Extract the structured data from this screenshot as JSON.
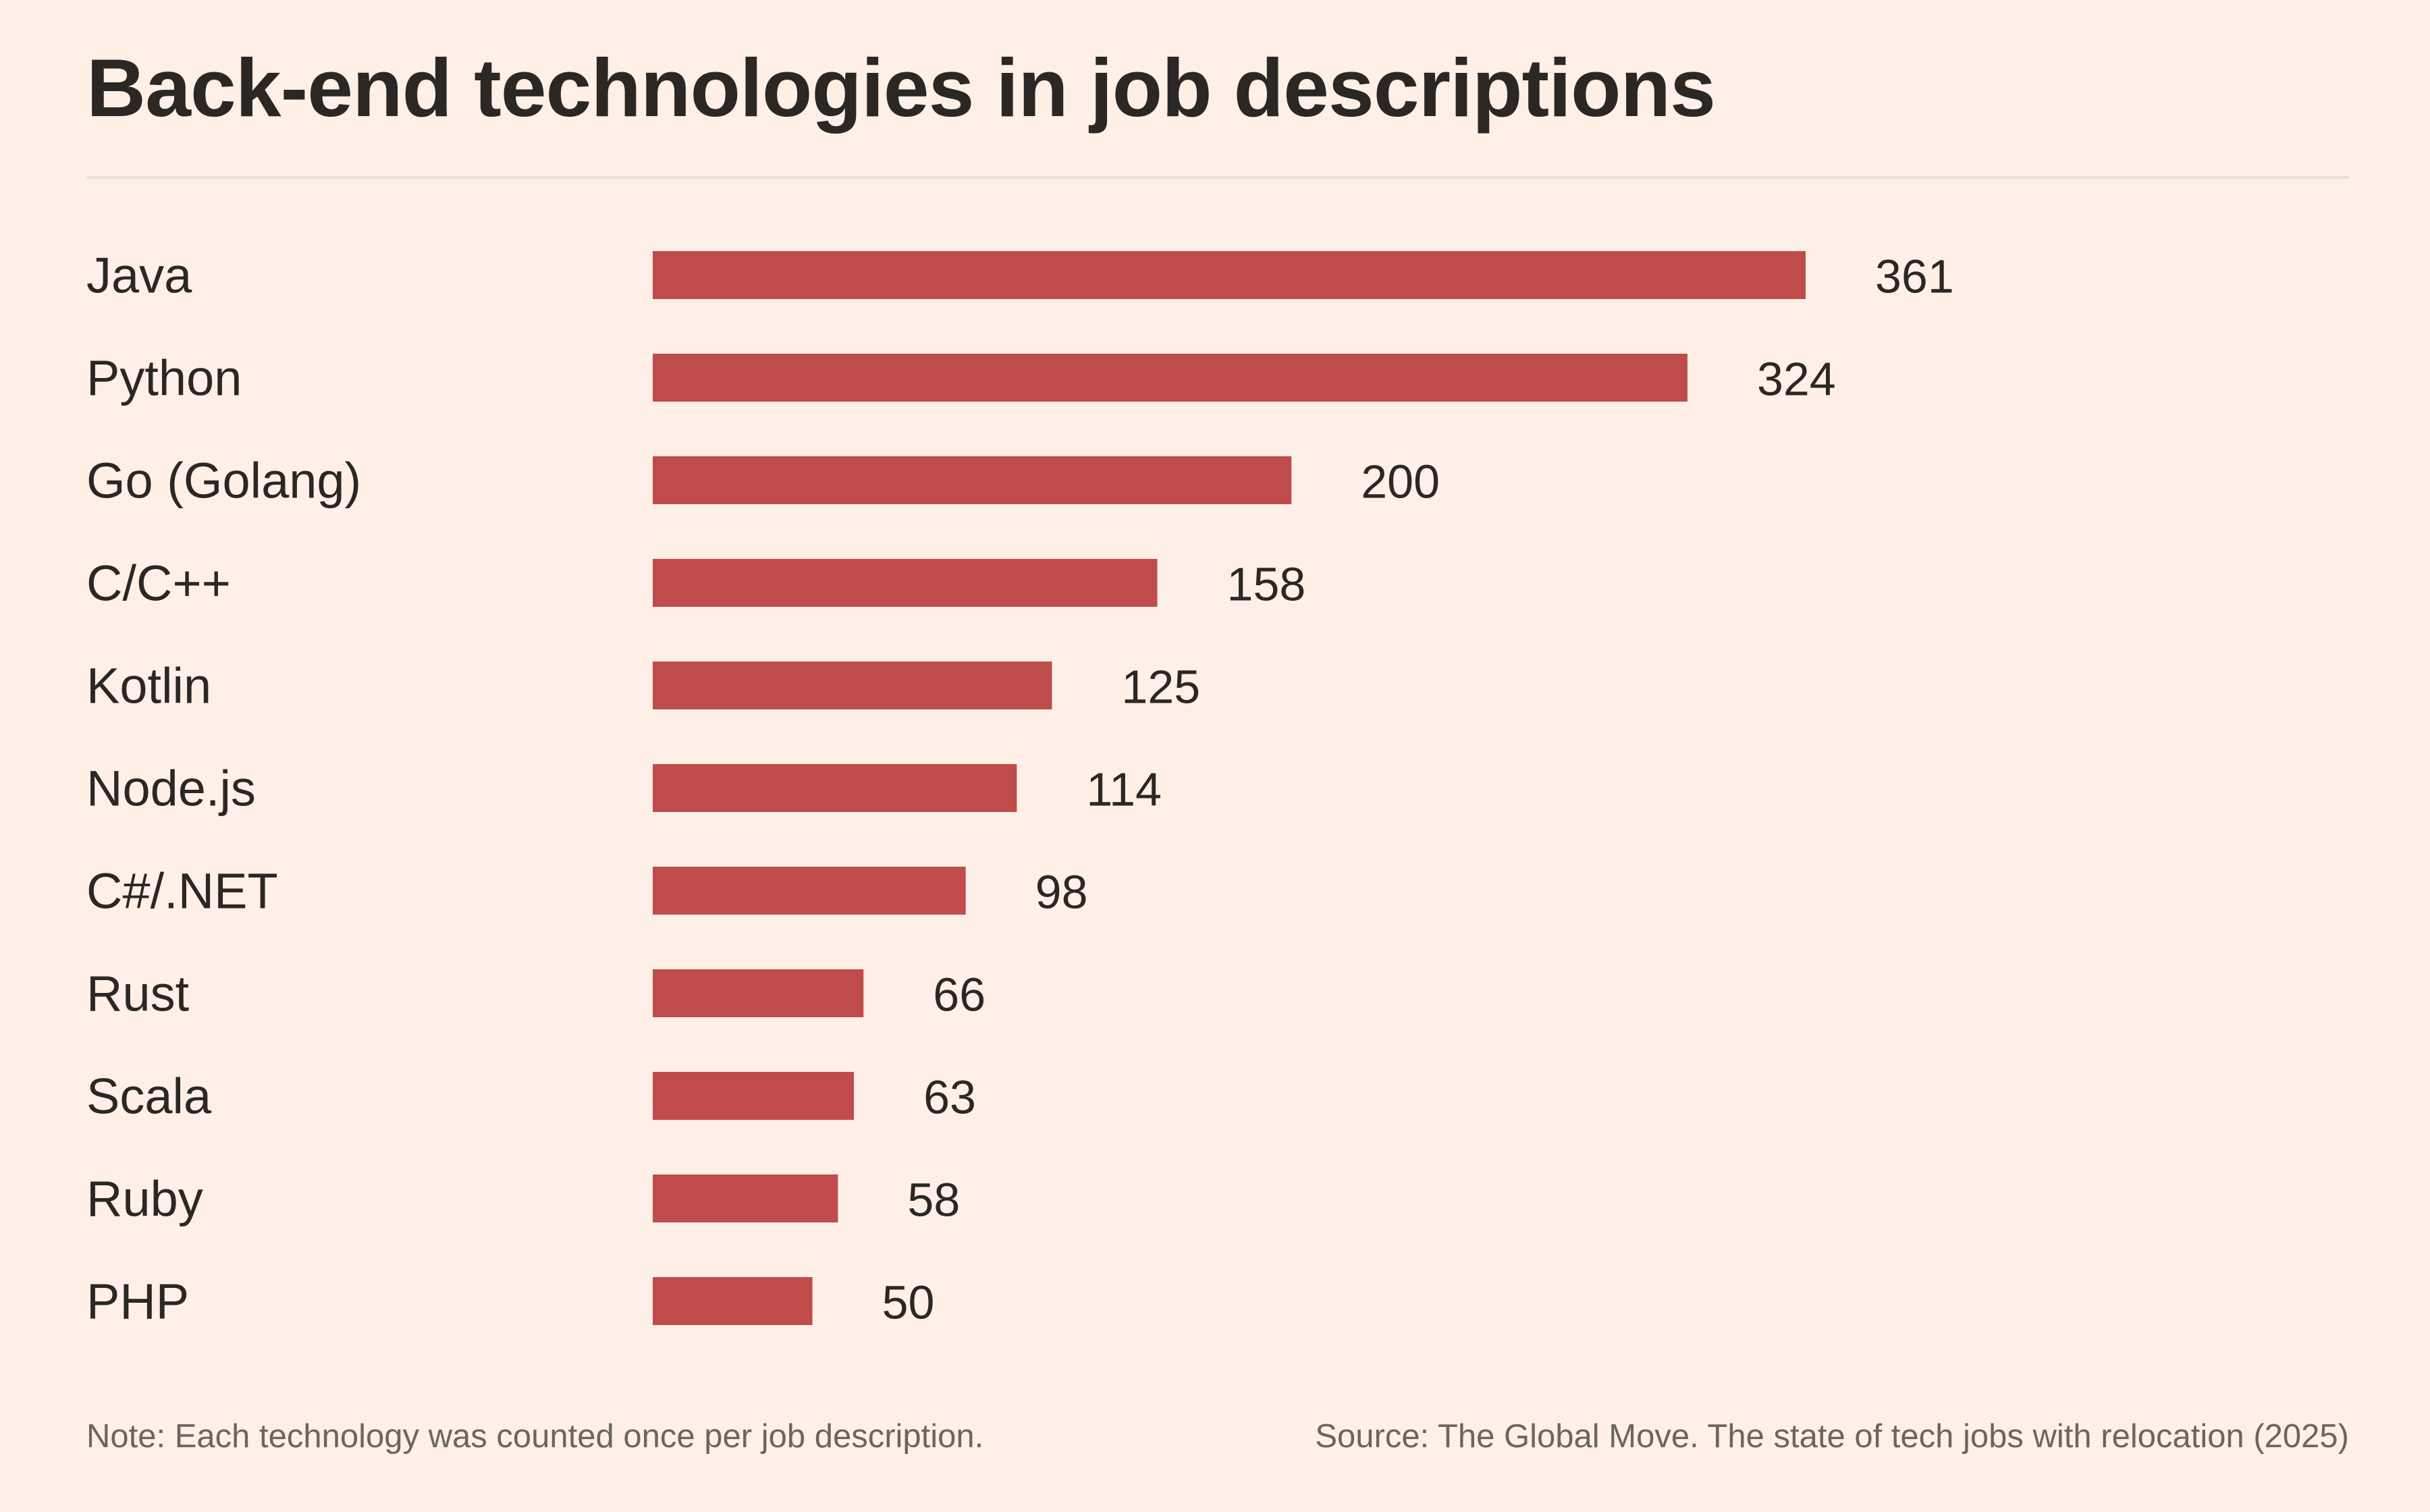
{
  "chart_data": {
    "type": "bar",
    "orientation": "horizontal",
    "title": "Back-end technologies in job descriptions",
    "categories": [
      "Java",
      "Python",
      "Go (Golang)",
      "C/C++",
      "Kotlin",
      "Node.js",
      "C#/.NET",
      "Rust",
      "Scala",
      "Ruby",
      "PHP"
    ],
    "values": [
      361,
      324,
      200,
      158,
      125,
      114,
      98,
      66,
      63,
      58,
      50
    ],
    "xlabel": "",
    "ylabel": "",
    "xlim": [
      0,
      361
    ],
    "grid": false,
    "bar_color": "#c04b4b",
    "note": "Note: Each technology was counted once per job description.",
    "source": "Source: The Global Move. The state of tech jobs with relocation (2025)"
  }
}
